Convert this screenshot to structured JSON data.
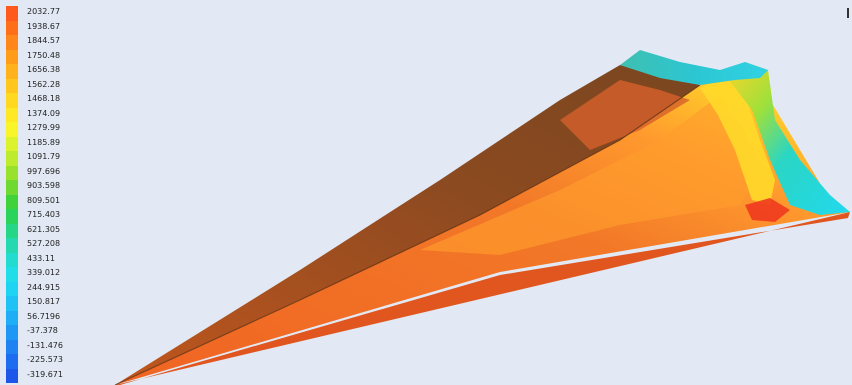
{
  "legend": {
    "entries": [
      {
        "label": "2032.77",
        "color": "#ff5a1e"
      },
      {
        "label": "1938.67",
        "color": "#ff6f1a"
      },
      {
        "label": "1844.57",
        "color": "#ff861a"
      },
      {
        "label": "1750.48",
        "color": "#ff9c1a"
      },
      {
        "label": "1656.38",
        "color": "#ffb21c"
      },
      {
        "label": "1562.28",
        "color": "#ffc71e"
      },
      {
        "label": "1468.18",
        "color": "#ffd820"
      },
      {
        "label": "1374.09",
        "color": "#ffe825"
      },
      {
        "label": "1279.99",
        "color": "#f8f52a"
      },
      {
        "label": "1185.89",
        "color": "#dcf22c"
      },
      {
        "label": "1091.79",
        "color": "#bdeb2e"
      },
      {
        "label": "997.696",
        "color": "#98e22e"
      },
      {
        "label": "903.598",
        "color": "#6fd931"
      },
      {
        "label": "809.501",
        "color": "#3fd23a"
      },
      {
        "label": "715.403",
        "color": "#2ad35c"
      },
      {
        "label": "621.305",
        "color": "#26d687"
      },
      {
        "label": "527.208",
        "color": "#24d9b0"
      },
      {
        "label": "433.11",
        "color": "#22dccf"
      },
      {
        "label": "339.012",
        "color": "#20dde8"
      },
      {
        "label": "244.915",
        "color": "#1fd3f3"
      },
      {
        "label": "150.817",
        "color": "#1fc2f5"
      },
      {
        "label": "56.7196",
        "color": "#1eaef5"
      },
      {
        "label": "-37.378",
        "color": "#1e98f4"
      },
      {
        "label": "-131.476",
        "color": "#1e82f2"
      },
      {
        "label": "-225.573",
        "color": "#1e6cef"
      },
      {
        "label": "-319.671",
        "color": "#1e56ea"
      }
    ]
  },
  "colors": {
    "background": "#e2e9f4",
    "hot": "#f26a1e",
    "hot_dark": "#a64a1c",
    "shadow_side": "#8a4c22",
    "warm": "#ff9a2a",
    "yellow": "#ffd42a",
    "cyan": "#28d4e6",
    "teal": "#3cc0b8"
  }
}
